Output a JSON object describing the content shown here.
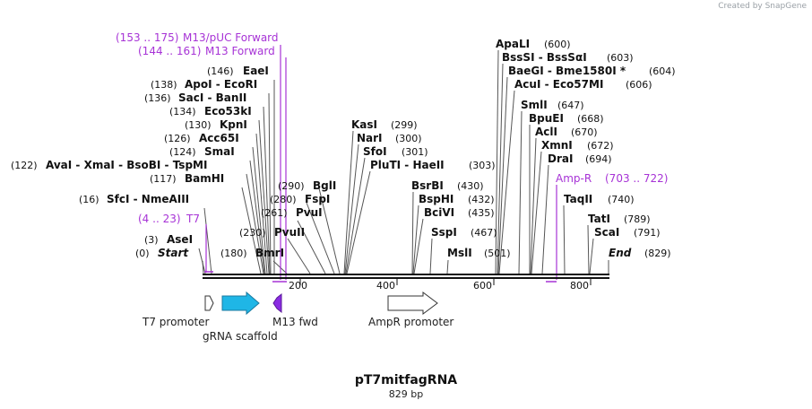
{
  "credit": "Created by SnapGene",
  "plasmid": {
    "name": "pT7mitfagRNA",
    "length": "829 bp"
  },
  "primers": {
    "m13puc": {
      "range": "(153 .. 175)",
      "name": "M13/pUC Forward"
    },
    "m13": {
      "range": "(144 .. 161)",
      "name": "M13 Forward"
    },
    "t7": {
      "range": "(4 .. 23)",
      "name": "T7"
    },
    "ampr": {
      "name": "Amp-R",
      "range": "(703 .. 722)"
    }
  },
  "sites_left": [
    {
      "pos": "(146)",
      "name": "EaeI"
    },
    {
      "pos": "(138)",
      "name": "ApoI - EcoRI"
    },
    {
      "pos": "(136)",
      "name": "SacI - BanII"
    },
    {
      "pos": "(134)",
      "name": "Eco53kI"
    },
    {
      "pos": "(130)",
      "name": "KpnI"
    },
    {
      "pos": "(126)",
      "name": "Acc65I"
    },
    {
      "pos": "(124)",
      "name": "SmaI"
    },
    {
      "pos": "(122)",
      "name": "AvaI - XmaI - BsoBI - TspMI"
    },
    {
      "pos": "(117)",
      "name": "BamHI"
    },
    {
      "pos": "(16)",
      "name": "SfcI - NmeAIII"
    },
    {
      "pos": "(3)",
      "name": "AseI"
    },
    {
      "pos": "(0)",
      "name": "Start"
    },
    {
      "pos": "(180)",
      "name": "BmrI"
    },
    {
      "pos": "(230)",
      "name": "PvuII"
    },
    {
      "pos": "(261)",
      "name": "PvuI"
    },
    {
      "pos": "(280)",
      "name": "FspI"
    },
    {
      "pos": "(290)",
      "name": "BglI"
    }
  ],
  "sites_mid": [
    {
      "name": "KasI",
      "pos": "(299)"
    },
    {
      "name": "NarI",
      "pos": "(300)"
    },
    {
      "name": "SfoI",
      "pos": "(301)"
    },
    {
      "name": "PluTI - HaeII",
      "pos": "(303)"
    },
    {
      "name": "BsrBI",
      "pos": "(430)"
    },
    {
      "name": "BspHI",
      "pos": "(432)"
    },
    {
      "name": "BciVI",
      "pos": "(435)"
    },
    {
      "name": "SspI",
      "pos": "(467)"
    },
    {
      "name": "MslI",
      "pos": "(501)"
    }
  ],
  "sites_right": [
    {
      "name": "ApaLI",
      "pos": "(600)"
    },
    {
      "name": "BssSI - BssSαI",
      "pos": "(603)"
    },
    {
      "name": "BaeGI - Bme1580I *",
      "pos": "(604)"
    },
    {
      "name": "AcuI - Eco57MI",
      "pos": "(606)"
    },
    {
      "name": "SmlI",
      "pos": "(647)"
    },
    {
      "name": "BpuEI",
      "pos": "(668)"
    },
    {
      "name": "AclI",
      "pos": "(670)"
    },
    {
      "name": "XmnI",
      "pos": "(672)"
    },
    {
      "name": "DraI",
      "pos": "(694)"
    },
    {
      "name": "TaqII",
      "pos": "(740)"
    },
    {
      "name": "TatI",
      "pos": "(789)"
    },
    {
      "name": "ScaI",
      "pos": "(791)"
    },
    {
      "name": "End",
      "pos": "(829)"
    }
  ],
  "ruler": [
    "200",
    "400",
    "600",
    "800"
  ],
  "features": {
    "t7promoter": "T7 promoter",
    "grna": "gRNA scaffold",
    "m13fwd": "M13 fwd",
    "amprpromoter": "AmpR promoter"
  },
  "colors": {
    "primer": "#a733d6",
    "grna": "#1fb6e6",
    "m13fwd": "#8a2be2",
    "backbone": "#111111"
  }
}
